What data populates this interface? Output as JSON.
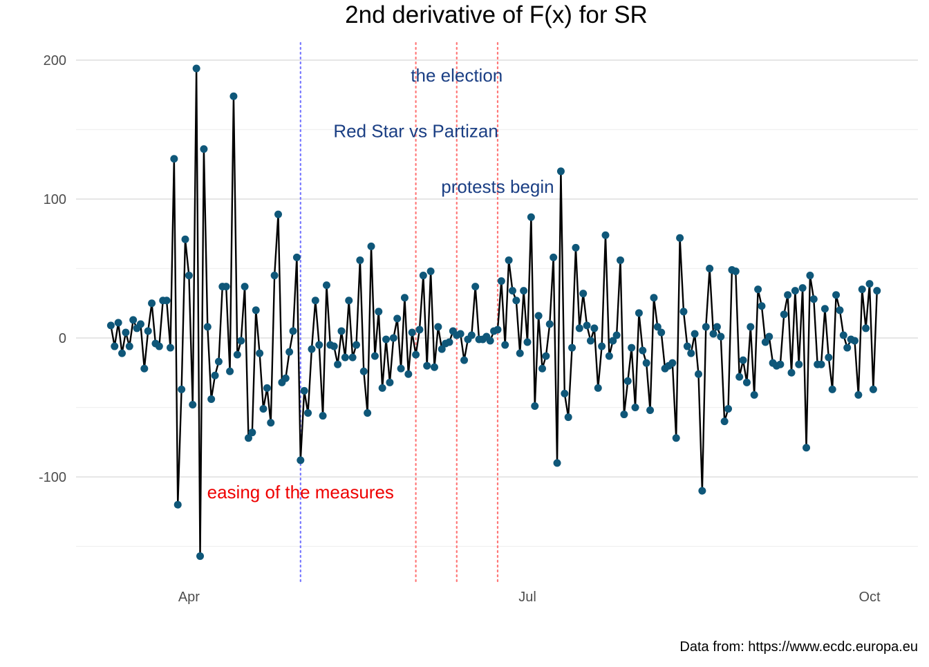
{
  "chart_data": {
    "type": "line",
    "title": "2nd derivative of F(x) for SR",
    "caption": "Data from: https://www.ecdc.europa.eu",
    "xlabel": "",
    "ylabel": "",
    "x_start": "2020-03-21",
    "x_end": "2020-10-05",
    "x_ticks": [
      {
        "date": "2020-04-01",
        "label": "Apr"
      },
      {
        "date": "2020-07-01",
        "label": "Jul"
      },
      {
        "date": "2020-10-01",
        "label": "Oct"
      }
    ],
    "ylim": [
      -160,
      212
    ],
    "y_ticks_major": [
      {
        "value": 200,
        "label": "200"
      },
      {
        "value": 100,
        "label": "100"
      },
      {
        "value": 0,
        "label": "0"
      },
      {
        "value": -100,
        "label": "-100"
      }
    ],
    "y_ticks_minor": [
      150,
      50,
      -50,
      -150
    ],
    "grid": true,
    "legend": "none",
    "colors": {
      "line": "#000000",
      "points": "#0f5779",
      "event_blue_line": "#7777ff",
      "event_red_line": "#ff7777",
      "label_blue": "#1b3f84",
      "label_red": "#ee0000"
    },
    "events": [
      {
        "date": "2020-05-01",
        "label": "easing of the measures",
        "line_color": "#7777ff",
        "label_color": "#ee0000",
        "label_y": -111
      },
      {
        "date": "2020-06-01",
        "label": "Red Star vs Partizan",
        "line_color": "#ff7777",
        "label_color": "#1b3f84",
        "label_y": 149
      },
      {
        "date": "2020-06-12",
        "label": "the election",
        "line_color": "#ff7777",
        "label_color": "#1b3f84",
        "label_y": 189
      },
      {
        "date": "2020-06-23",
        "label": "protests begin",
        "line_color": "#ff7777",
        "label_color": "#1b3f84",
        "label_y": 109
      }
    ],
    "series": [
      {
        "values": [
          {
            "x": "2020-03-11",
            "y": 9
          },
          {
            "x": "2020-03-12",
            "y": -6
          },
          {
            "x": "2020-03-13",
            "y": 11
          },
          {
            "x": "2020-03-14",
            "y": -11
          },
          {
            "x": "2020-03-15",
            "y": 4
          },
          {
            "x": "2020-03-16",
            "y": -6
          },
          {
            "x": "2020-03-17",
            "y": 13
          },
          {
            "x": "2020-03-18",
            "y": 7
          },
          {
            "x": "2020-03-19",
            "y": 10
          },
          {
            "x": "2020-03-20",
            "y": -22
          },
          {
            "x": "2020-03-21",
            "y": 5
          },
          {
            "x": "2020-03-22",
            "y": 25
          },
          {
            "x": "2020-03-23",
            "y": -4
          },
          {
            "x": "2020-03-24",
            "y": -6
          },
          {
            "x": "2020-03-25",
            "y": 27
          },
          {
            "x": "2020-03-26",
            "y": 27
          },
          {
            "x": "2020-03-27",
            "y": -7
          },
          {
            "x": "2020-03-28",
            "y": 129
          },
          {
            "x": "2020-03-29",
            "y": -120
          },
          {
            "x": "2020-03-30",
            "y": -37
          },
          {
            "x": "2020-03-31",
            "y": 71
          },
          {
            "x": "2020-04-01",
            "y": 45
          },
          {
            "x": "2020-04-02",
            "y": -48
          },
          {
            "x": "2020-04-03",
            "y": 194
          },
          {
            "x": "2020-04-04",
            "y": -157
          },
          {
            "x": "2020-04-05",
            "y": 136
          },
          {
            "x": "2020-04-06",
            "y": 8
          },
          {
            "x": "2020-04-07",
            "y": -44
          },
          {
            "x": "2020-04-08",
            "y": -27
          },
          {
            "x": "2020-04-09",
            "y": -17
          },
          {
            "x": "2020-04-10",
            "y": 37
          },
          {
            "x": "2020-04-11",
            "y": 37
          },
          {
            "x": "2020-04-12",
            "y": -24
          },
          {
            "x": "2020-04-13",
            "y": 174
          },
          {
            "x": "2020-04-14",
            "y": -12
          },
          {
            "x": "2020-04-15",
            "y": -2
          },
          {
            "x": "2020-04-16",
            "y": 37
          },
          {
            "x": "2020-04-17",
            "y": -72
          },
          {
            "x": "2020-04-18",
            "y": -68
          },
          {
            "x": "2020-04-19",
            "y": 20
          },
          {
            "x": "2020-04-20",
            "y": -11
          },
          {
            "x": "2020-04-21",
            "y": -51
          },
          {
            "x": "2020-04-22",
            "y": -36
          },
          {
            "x": "2020-04-23",
            "y": -61
          },
          {
            "x": "2020-04-24",
            "y": 45
          },
          {
            "x": "2020-04-25",
            "y": 89
          },
          {
            "x": "2020-04-26",
            "y": -32
          },
          {
            "x": "2020-04-27",
            "y": -29
          },
          {
            "x": "2020-04-28",
            "y": -10
          },
          {
            "x": "2020-04-29",
            "y": 5
          },
          {
            "x": "2020-04-30",
            "y": 58
          },
          {
            "x": "2020-05-01",
            "y": -88
          },
          {
            "x": "2020-05-02",
            "y": -38
          },
          {
            "x": "2020-05-03",
            "y": -54
          },
          {
            "x": "2020-05-04",
            "y": -8
          },
          {
            "x": "2020-05-05",
            "y": 27
          },
          {
            "x": "2020-05-06",
            "y": -5
          },
          {
            "x": "2020-05-07",
            "y": -56
          },
          {
            "x": "2020-05-08",
            "y": 38
          },
          {
            "x": "2020-05-09",
            "y": -5
          },
          {
            "x": "2020-05-10",
            "y": -6
          },
          {
            "x": "2020-05-11",
            "y": -19
          },
          {
            "x": "2020-05-12",
            "y": 5
          },
          {
            "x": "2020-05-13",
            "y": -14
          },
          {
            "x": "2020-05-14",
            "y": 27
          },
          {
            "x": "2020-05-15",
            "y": -14
          },
          {
            "x": "2020-05-16",
            "y": -5
          },
          {
            "x": "2020-05-17",
            "y": 56
          },
          {
            "x": "2020-05-18",
            "y": -24
          },
          {
            "x": "2020-05-19",
            "y": -54
          },
          {
            "x": "2020-05-20",
            "y": 66
          },
          {
            "x": "2020-05-21",
            "y": -13
          },
          {
            "x": "2020-05-22",
            "y": 19
          },
          {
            "x": "2020-05-23",
            "y": -36
          },
          {
            "x": "2020-05-24",
            "y": -1
          },
          {
            "x": "2020-05-25",
            "y": -32
          },
          {
            "x": "2020-05-26",
            "y": 0
          },
          {
            "x": "2020-05-27",
            "y": 14
          },
          {
            "x": "2020-05-28",
            "y": -22
          },
          {
            "x": "2020-05-29",
            "y": 29
          },
          {
            "x": "2020-05-30",
            "y": -26
          },
          {
            "x": "2020-05-31",
            "y": 4
          },
          {
            "x": "2020-06-01",
            "y": -12
          },
          {
            "x": "2020-06-02",
            "y": 6
          },
          {
            "x": "2020-06-03",
            "y": 45
          },
          {
            "x": "2020-06-04",
            "y": -20
          },
          {
            "x": "2020-06-05",
            "y": 48
          },
          {
            "x": "2020-06-06",
            "y": -21
          },
          {
            "x": "2020-06-07",
            "y": 8
          },
          {
            "x": "2020-06-08",
            "y": -8
          },
          {
            "x": "2020-06-09",
            "y": -4
          },
          {
            "x": "2020-06-10",
            "y": -3
          },
          {
            "x": "2020-06-11",
            "y": 5
          },
          {
            "x": "2020-06-12",
            "y": 2
          },
          {
            "x": "2020-06-13",
            "y": 3
          },
          {
            "x": "2020-06-14",
            "y": -16
          },
          {
            "x": "2020-06-15",
            "y": -1
          },
          {
            "x": "2020-06-16",
            "y": 2
          },
          {
            "x": "2020-06-17",
            "y": 37
          },
          {
            "x": "2020-06-18",
            "y": -1
          },
          {
            "x": "2020-06-19",
            "y": -1
          },
          {
            "x": "2020-06-20",
            "y": 1
          },
          {
            "x": "2020-06-21",
            "y": -2
          },
          {
            "x": "2020-06-22",
            "y": 5
          },
          {
            "x": "2020-06-23",
            "y": 6
          },
          {
            "x": "2020-06-24",
            "y": 41
          },
          {
            "x": "2020-06-25",
            "y": -5
          },
          {
            "x": "2020-06-26",
            "y": 56
          },
          {
            "x": "2020-06-27",
            "y": 34
          },
          {
            "x": "2020-06-28",
            "y": 27
          },
          {
            "x": "2020-06-29",
            "y": -11
          },
          {
            "x": "2020-06-30",
            "y": 34
          },
          {
            "x": "2020-07-01",
            "y": -3
          },
          {
            "x": "2020-07-02",
            "y": 87
          },
          {
            "x": "2020-07-03",
            "y": -49
          },
          {
            "x": "2020-07-04",
            "y": 16
          },
          {
            "x": "2020-07-05",
            "y": -22
          },
          {
            "x": "2020-07-06",
            "y": -13
          },
          {
            "x": "2020-07-07",
            "y": 10
          },
          {
            "x": "2020-07-08",
            "y": 58
          },
          {
            "x": "2020-07-09",
            "y": -90
          },
          {
            "x": "2020-07-10",
            "y": 120
          },
          {
            "x": "2020-07-11",
            "y": -40
          },
          {
            "x": "2020-07-12",
            "y": -57
          },
          {
            "x": "2020-07-13",
            "y": -7
          },
          {
            "x": "2020-07-14",
            "y": 65
          },
          {
            "x": "2020-07-15",
            "y": 7
          },
          {
            "x": "2020-07-16",
            "y": 32
          },
          {
            "x": "2020-07-17",
            "y": 9
          },
          {
            "x": "2020-07-18",
            "y": -2
          },
          {
            "x": "2020-07-19",
            "y": 7
          },
          {
            "x": "2020-07-20",
            "y": -36
          },
          {
            "x": "2020-07-21",
            "y": -6
          },
          {
            "x": "2020-07-22",
            "y": 74
          },
          {
            "x": "2020-07-23",
            "y": -13
          },
          {
            "x": "2020-07-24",
            "y": -2
          },
          {
            "x": "2020-07-25",
            "y": 2
          },
          {
            "x": "2020-07-26",
            "y": 56
          },
          {
            "x": "2020-07-27",
            "y": -55
          },
          {
            "x": "2020-07-28",
            "y": -31
          },
          {
            "x": "2020-07-29",
            "y": -7
          },
          {
            "x": "2020-07-30",
            "y": -50
          },
          {
            "x": "2020-07-31",
            "y": 18
          },
          {
            "x": "2020-08-01",
            "y": -9
          },
          {
            "x": "2020-08-02",
            "y": -18
          },
          {
            "x": "2020-08-03",
            "y": -52
          },
          {
            "x": "2020-08-04",
            "y": 29
          },
          {
            "x": "2020-08-05",
            "y": 8
          },
          {
            "x": "2020-08-06",
            "y": 4
          },
          {
            "x": "2020-08-07",
            "y": -22
          },
          {
            "x": "2020-08-08",
            "y": -20
          },
          {
            "x": "2020-08-09",
            "y": -18
          },
          {
            "x": "2020-08-10",
            "y": -72
          },
          {
            "x": "2020-08-11",
            "y": 72
          },
          {
            "x": "2020-08-12",
            "y": 19
          },
          {
            "x": "2020-08-13",
            "y": -6
          },
          {
            "x": "2020-08-14",
            "y": -11
          },
          {
            "x": "2020-08-15",
            "y": 3
          },
          {
            "x": "2020-08-16",
            "y": -26
          },
          {
            "x": "2020-08-17",
            "y": -110
          },
          {
            "x": "2020-08-18",
            "y": 8
          },
          {
            "x": "2020-08-19",
            "y": 50
          },
          {
            "x": "2020-08-20",
            "y": 3
          },
          {
            "x": "2020-08-21",
            "y": 8
          },
          {
            "x": "2020-08-22",
            "y": 1
          },
          {
            "x": "2020-08-23",
            "y": -60
          },
          {
            "x": "2020-08-24",
            "y": -51
          },
          {
            "x": "2020-08-25",
            "y": 49
          },
          {
            "x": "2020-08-26",
            "y": 48
          },
          {
            "x": "2020-08-27",
            "y": -28
          },
          {
            "x": "2020-08-28",
            "y": -16
          },
          {
            "x": "2020-08-29",
            "y": -32
          },
          {
            "x": "2020-08-30",
            "y": 8
          },
          {
            "x": "2020-08-31",
            "y": -41
          },
          {
            "x": "2020-09-01",
            "y": 35
          },
          {
            "x": "2020-09-02",
            "y": 23
          },
          {
            "x": "2020-09-03",
            "y": -3
          },
          {
            "x": "2020-09-04",
            "y": 1
          },
          {
            "x": "2020-09-05",
            "y": -18
          },
          {
            "x": "2020-09-06",
            "y": -20
          },
          {
            "x": "2020-09-07",
            "y": -19
          },
          {
            "x": "2020-09-08",
            "y": 17
          },
          {
            "x": "2020-09-09",
            "y": 31
          },
          {
            "x": "2020-09-10",
            "y": -25
          },
          {
            "x": "2020-09-11",
            "y": 34
          },
          {
            "x": "2020-09-12",
            "y": -19
          },
          {
            "x": "2020-09-13",
            "y": 36
          },
          {
            "x": "2020-09-14",
            "y": -79
          },
          {
            "x": "2020-09-15",
            "y": 45
          },
          {
            "x": "2020-09-16",
            "y": 28
          },
          {
            "x": "2020-09-17",
            "y": -19
          },
          {
            "x": "2020-09-18",
            "y": -19
          },
          {
            "x": "2020-09-19",
            "y": 21
          },
          {
            "x": "2020-09-20",
            "y": -14
          },
          {
            "x": "2020-09-21",
            "y": -37
          },
          {
            "x": "2020-09-22",
            "y": 31
          },
          {
            "x": "2020-09-23",
            "y": 20
          },
          {
            "x": "2020-09-24",
            "y": 2
          },
          {
            "x": "2020-09-25",
            "y": -7
          },
          {
            "x": "2020-09-26",
            "y": -1
          },
          {
            "x": "2020-09-27",
            "y": -2
          },
          {
            "x": "2020-09-28",
            "y": -41
          },
          {
            "x": "2020-09-29",
            "y": 35
          },
          {
            "x": "2020-09-30",
            "y": 7
          },
          {
            "x": "2020-10-01",
            "y": 39
          },
          {
            "x": "2020-10-02",
            "y": -37
          },
          {
            "x": "2020-10-03",
            "y": 34
          }
        ]
      }
    ]
  }
}
